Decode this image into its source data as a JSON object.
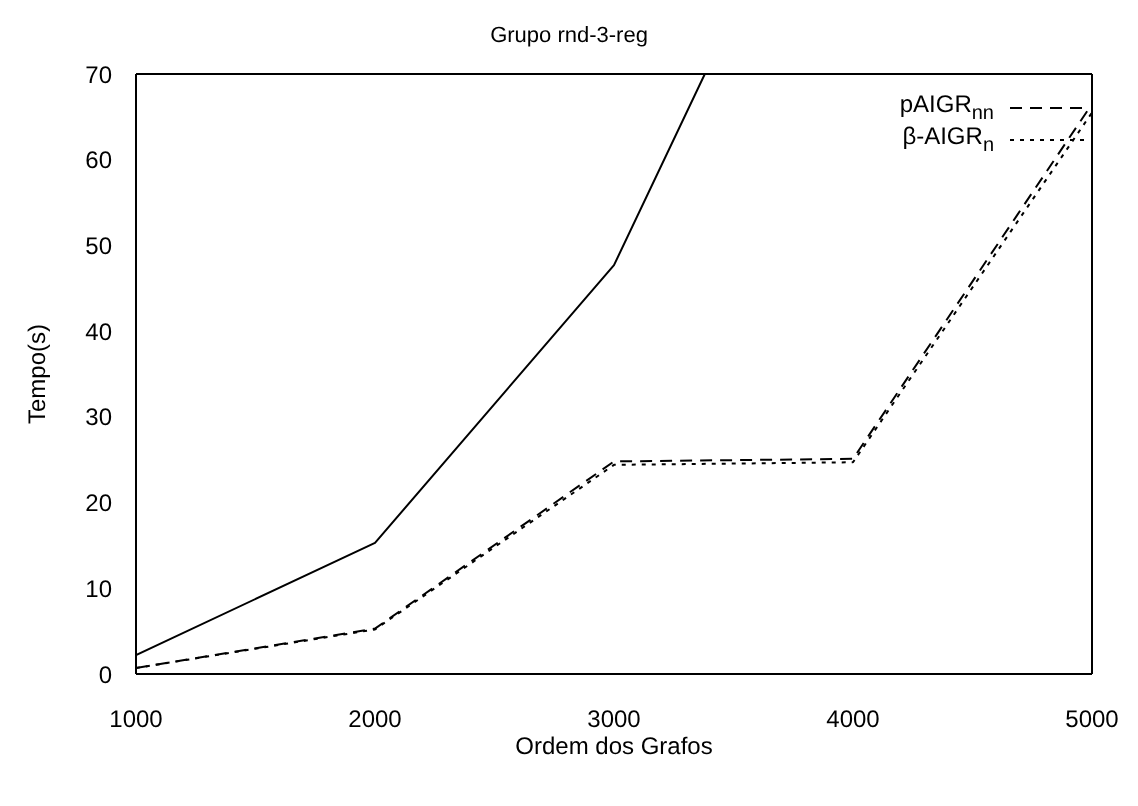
{
  "chart_data": {
    "type": "line",
    "title": "Grupo rnd-3-reg",
    "xlabel": "Ordem dos Grafos",
    "ylabel": "Tempo(s)",
    "x": [
      1000,
      2000,
      3000,
      4000,
      5000
    ],
    "xlim": [
      1000,
      5000
    ],
    "xticks": [
      1000,
      2000,
      3000,
      4000,
      5000
    ],
    "ylim": [
      0,
      70
    ],
    "yticks": [
      0,
      10,
      20,
      30,
      40,
      50,
      60,
      70
    ],
    "grid": false,
    "legend": "top right",
    "marker": "none",
    "series": [
      {
        "color": "#000000",
        "line_style": "solid",
        "x": [
          1000,
          2000,
          3000,
          3380
        ],
        "values": [
          2.2,
          15.3,
          47.7,
          70
        ]
      },
      {
        "name": "pAIGR$_{nn}$",
        "color": "#000000",
        "line_style": "dashed",
        "values": [
          0.7,
          5.3,
          24.8,
          25.1,
          66.5
        ]
      },
      {
        "name": "β-AIGR$_{n}$",
        "color": "#000000",
        "line_style": "dotted",
        "values": [
          0.7,
          5.2,
          24.4,
          24.7,
          65.5
        ]
      }
    ]
  }
}
